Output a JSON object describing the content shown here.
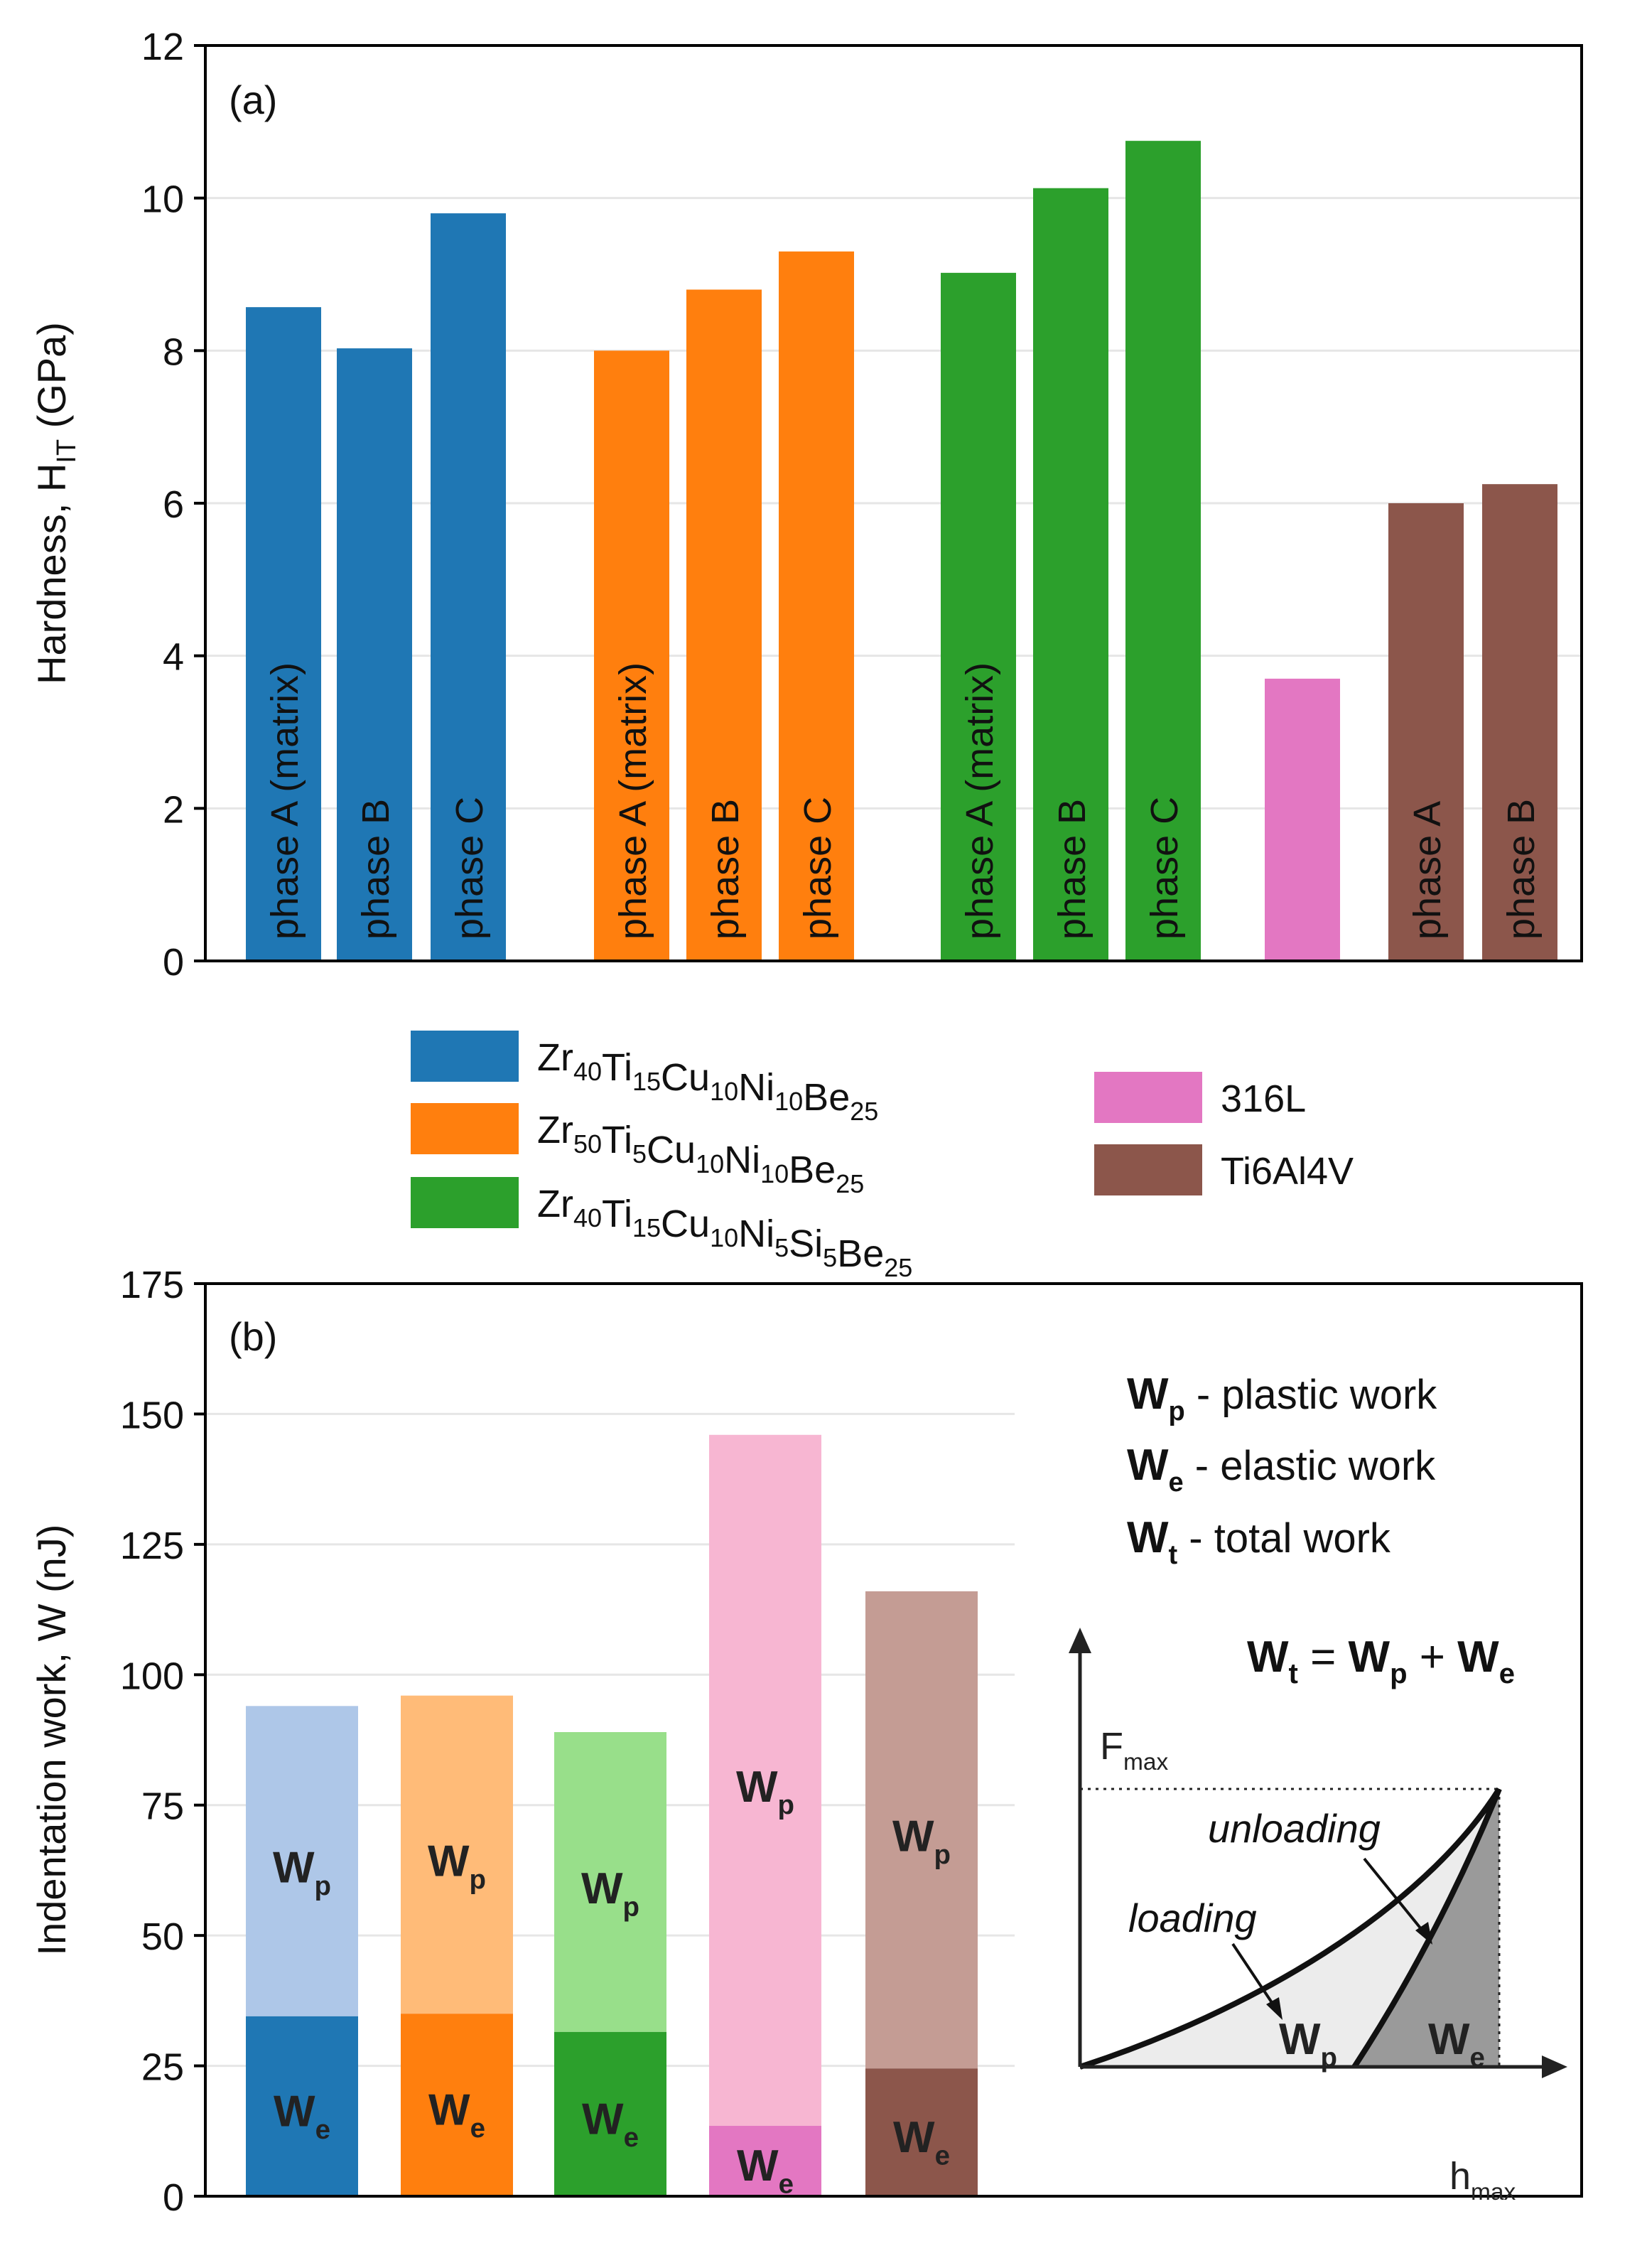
{
  "colors": {
    "blue": "#1f77b4",
    "orange": "#ff7f0e",
    "green": "#2ca02c",
    "pink": "#e377c2",
    "brown": "#8c564b",
    "light_blue": "#aec7e8",
    "light_orange": "#ffbb78",
    "light_green": "#98df8a",
    "light_pink": "#f7b6d2",
    "light_brown": "#c49c94",
    "grid": "#e6e6e6",
    "frame": "#000000"
  },
  "chart_data": [
    {
      "type": "bar",
      "panel_label": "(a)",
      "ylabel": "Hardness, H",
      "ylabel_sub": "IT",
      "ylabel_unit": " (GPa)",
      "ylim": [
        0,
        12
      ],
      "yticks": [
        "0",
        "2",
        "4",
        "6",
        "8",
        "10",
        "12"
      ],
      "grid": true,
      "groups": [
        {
          "alloy": "Zr40Ti15Cu10Ni10Be25",
          "color_key": "blue",
          "bars": [
            {
              "label": "phase A (matrix)",
              "value": 8.57
            },
            {
              "label": "phase B",
              "value": 8.03
            },
            {
              "label": "phase C",
              "value": 9.8
            }
          ]
        },
        {
          "alloy": "Zr50Ti5Cu10Ni10Be25",
          "color_key": "orange",
          "bars": [
            {
              "label": "phase A (matrix)",
              "value": 8.0
            },
            {
              "label": "phase B",
              "value": 8.8
            },
            {
              "label": "phase C",
              "value": 9.3
            }
          ]
        },
        {
          "alloy": "Zr40Ti15Cu10Ni5Si5Be25",
          "color_key": "green",
          "bars": [
            {
              "label": "phase A (matrix)",
              "value": 9.02
            },
            {
              "label": "phase B",
              "value": 10.13
            },
            {
              "label": "phase C",
              "value": 10.75
            }
          ]
        },
        {
          "alloy": "316L",
          "color_key": "pink",
          "bars": [
            {
              "label": "",
              "value": 3.7
            }
          ]
        },
        {
          "alloy": "Ti6Al4V",
          "color_key": "brown",
          "bars": [
            {
              "label": "phase A",
              "value": 6.0
            },
            {
              "label": "phase B",
              "value": 6.25
            }
          ]
        }
      ],
      "legend": {
        "placement": "below-panel",
        "entries": [
          {
            "color_key": "blue",
            "parts": [
              [
                "Zr",
                "40"
              ],
              [
                "Ti",
                "15"
              ],
              [
                "Cu",
                "10"
              ],
              [
                "Ni",
                "10"
              ],
              [
                "Be",
                "25"
              ]
            ]
          },
          {
            "color_key": "orange",
            "parts": [
              [
                "Zr",
                "50"
              ],
              [
                "Ti",
                "5"
              ],
              [
                "Cu",
                "10"
              ],
              [
                "Ni",
                "10"
              ],
              [
                "Be",
                "25"
              ]
            ]
          },
          {
            "color_key": "green",
            "parts": [
              [
                "Zr",
                "40"
              ],
              [
                "Ti",
                "15"
              ],
              [
                "Cu",
                "10"
              ],
              [
                "Ni",
                "5"
              ],
              [
                "Si",
                "5"
              ],
              [
                "Be",
                "25"
              ]
            ]
          },
          {
            "color_key": "pink",
            "parts": [
              [
                "316L",
                ""
              ]
            ]
          },
          {
            "color_key": "brown",
            "parts": [
              [
                "Ti6Al4V",
                ""
              ]
            ]
          }
        ]
      }
    },
    {
      "type": "stacked-bar",
      "panel_label": "(b)",
      "ylabel": "Indentation work, W (nJ)",
      "ylim": [
        0,
        175
      ],
      "yticks": [
        "0",
        "25",
        "50",
        "75",
        "100",
        "125",
        "150",
        "175"
      ],
      "grid": true,
      "categories": [
        "Zr40Ti15Cu10Ni10Be25",
        "Zr50Ti5Cu10Ni10Be25",
        "Zr40Ti15Cu10Ni5Si5Be25",
        "316L",
        "Ti6Al4V"
      ],
      "series": [
        {
          "name": "We",
          "label_main": "W",
          "label_sub": "e",
          "color_keys": [
            "blue",
            "orange",
            "green",
            "pink",
            "brown"
          ],
          "values": [
            34.5,
            35,
            31.5,
            13.5,
            24.5
          ]
        },
        {
          "name": "Wp",
          "label_main": "W",
          "label_sub": "p",
          "color_keys": [
            "light_blue",
            "light_orange",
            "light_green",
            "light_pink",
            "light_brown"
          ],
          "values": [
            59.5,
            61,
            57.5,
            132.5,
            91.5
          ]
        }
      ],
      "totals": [
        94,
        96,
        89,
        146,
        116
      ],
      "work_legend": [
        {
          "main": "W",
          "sub": "p",
          "desc": " - plastic work"
        },
        {
          "main": "W",
          "sub": "e",
          "desc": " - elastic work"
        },
        {
          "main": "W",
          "sub": "t",
          "desc": "  - total work"
        }
      ],
      "inset": {
        "equation": {
          "lhs": [
            "W",
            "t"
          ],
          "rhs1": [
            "W",
            "p"
          ],
          "rhs2": [
            "W",
            "e"
          ]
        },
        "fmax": [
          "F",
          "max"
        ],
        "hmax": [
          "h",
          "max"
        ],
        "loading_label": "loading",
        "unloading_label": "unloading",
        "wp": [
          "W",
          "p"
        ],
        "we": [
          "W",
          "e"
        ]
      }
    }
  ]
}
